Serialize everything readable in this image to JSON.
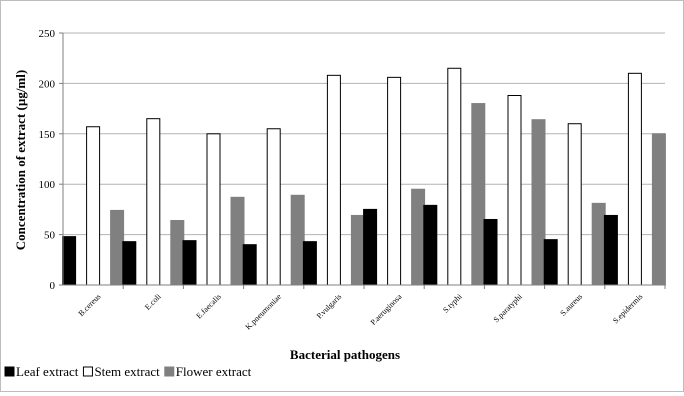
{
  "chart_data": {
    "type": "bar",
    "title": "",
    "xlabel": "Bacterial pathogens",
    "ylabel": "Concentration of extract (µg/ml)",
    "ylim": [
      0,
      250
    ],
    "yticks": [
      0,
      50,
      100,
      150,
      200,
      250
    ],
    "grid": "horizontal",
    "legend_position": "bottom-left",
    "categories": [
      "B.cereus",
      "E.coli",
      "E.faecalis",
      "K.pneumoniae",
      "P.vulgaris",
      "P.aeruginosa",
      "S.typhi",
      "S.paratyphi",
      "S.aureus",
      "S.epidermis"
    ],
    "series": [
      {
        "name": "Leaf extract",
        "color": "#000000",
        "values": [
          48,
          43,
          44,
          40,
          43,
          75,
          79,
          65,
          45,
          69
        ]
      },
      {
        "name": "Stem extract",
        "color": "#ffffff",
        "values": [
          157,
          165,
          150,
          155,
          208,
          206,
          215,
          188,
          160,
          210
        ]
      },
      {
        "name": "Flower extract",
        "color": "#808080",
        "values": [
          74,
          64,
          87,
          89,
          69,
          95,
          180,
          164,
          81,
          150
        ]
      }
    ]
  }
}
